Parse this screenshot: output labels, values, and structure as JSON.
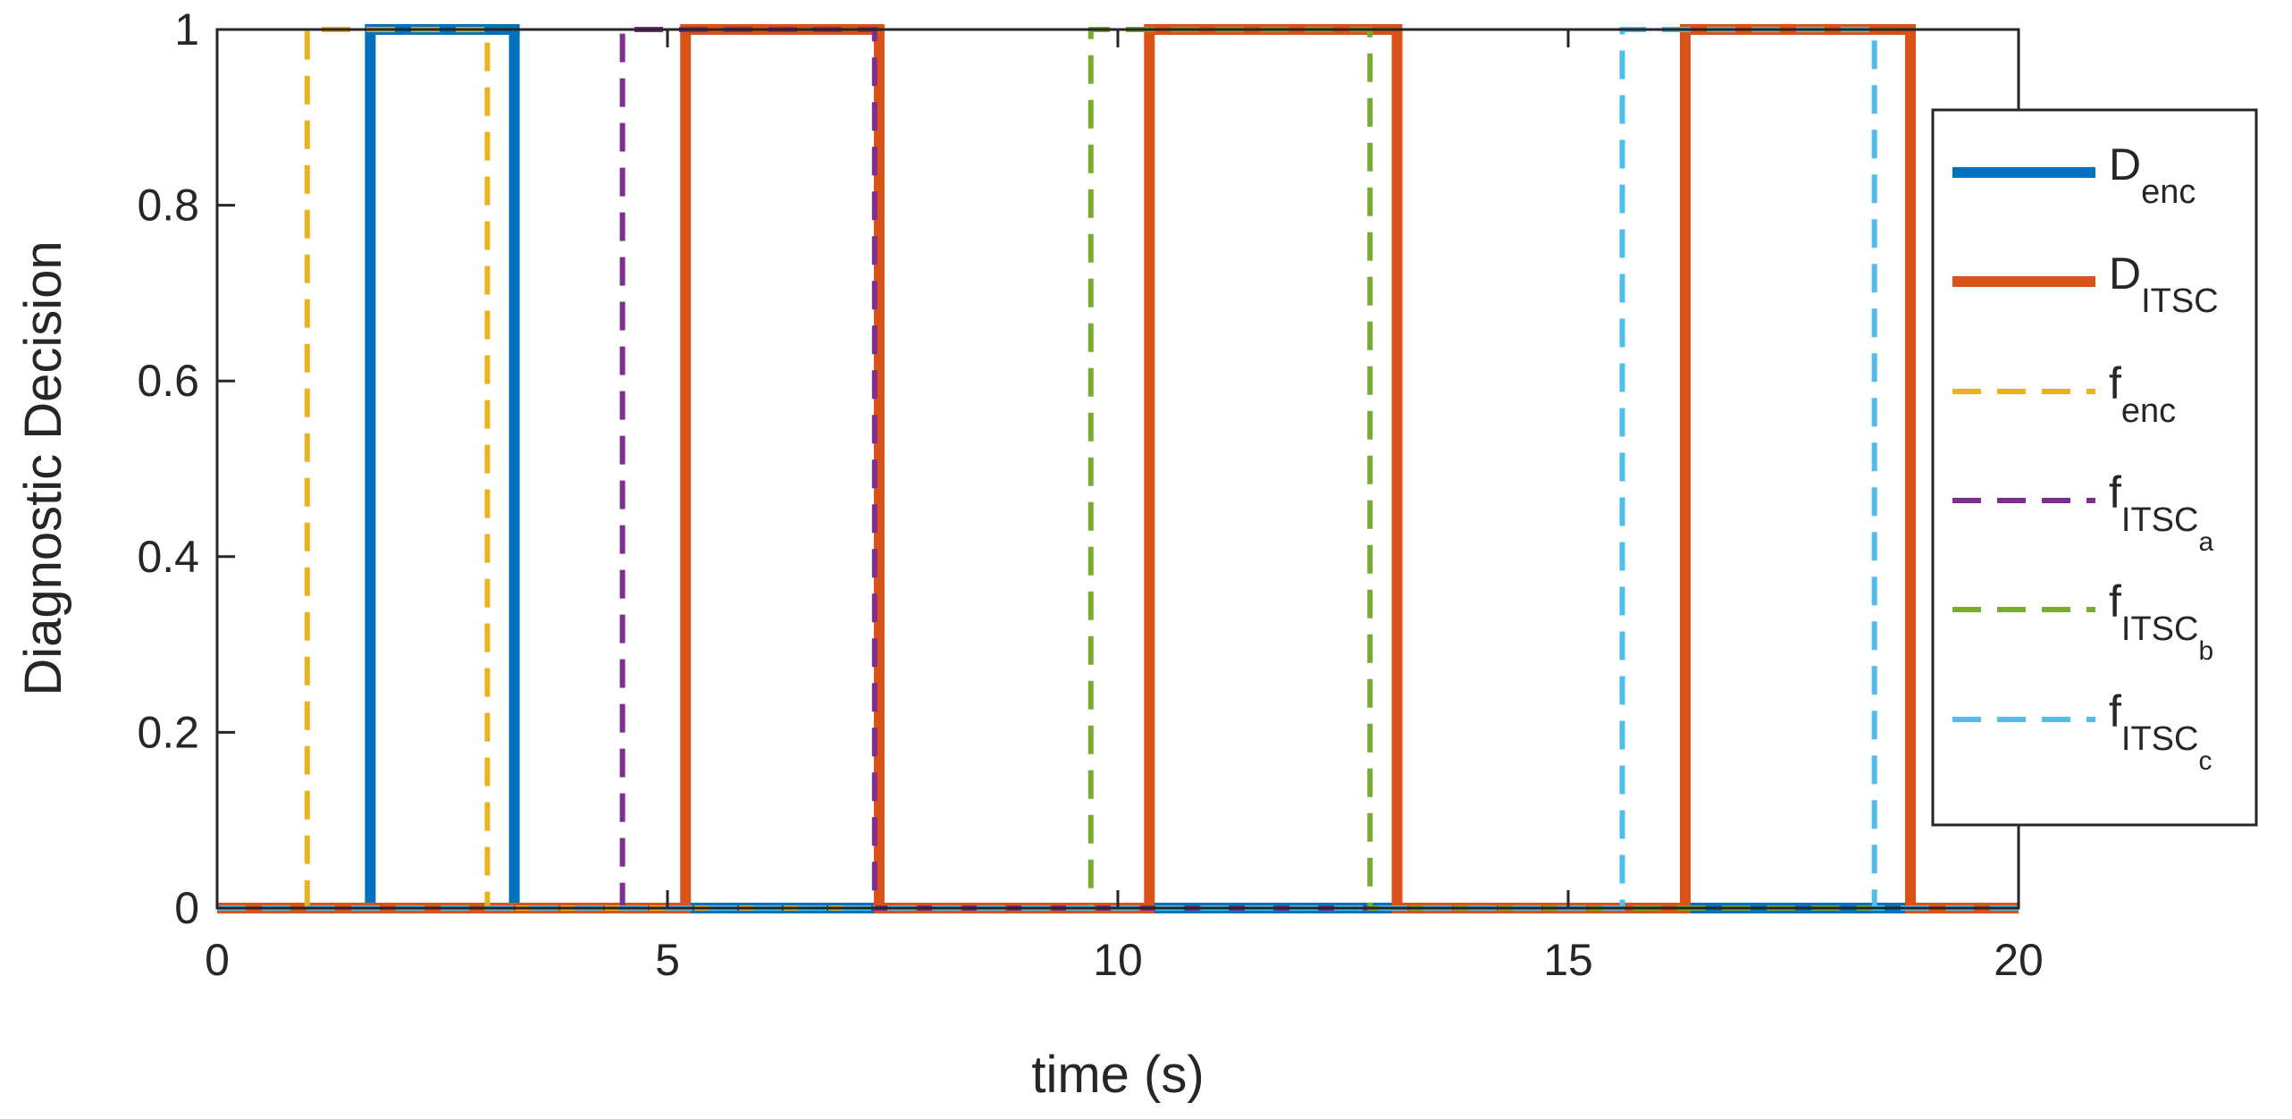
{
  "chart_data": {
    "type": "line",
    "xlabel": "time (s)",
    "ylabel": "Diagnostic Decision",
    "xlim": [
      0,
      20
    ],
    "ylim": [
      0,
      1
    ],
    "xticks": [
      0,
      5,
      10,
      15,
      20
    ],
    "xtick_labels": [
      "0",
      "5",
      "10",
      "15",
      "20"
    ],
    "yticks": [
      0,
      0.2,
      0.4,
      0.6,
      0.8,
      1
    ],
    "ytick_labels": [
      "0",
      "0.2",
      "0.4",
      "0.6",
      "0.8",
      "1"
    ],
    "grid": false,
    "legend_position": "right-inside",
    "series": [
      {
        "name": "D",
        "subscript": "enc",
        "subsubscript": "",
        "color": "#0072BD",
        "style": "solid",
        "x": [
          0,
          1.7,
          1.7,
          3.3,
          3.3,
          20
        ],
        "y": [
          0,
          0,
          1,
          1,
          0,
          0
        ]
      },
      {
        "name": "D",
        "subscript": "ITSC",
        "subsubscript": "",
        "color": "#D95319",
        "style": "solid",
        "x": [
          0,
          5.2,
          5.2,
          7.35,
          7.35,
          10.35,
          10.35,
          13.1,
          13.1,
          16.3,
          16.3,
          18.8,
          18.8,
          20
        ],
        "y": [
          0,
          0,
          1,
          1,
          0,
          0,
          1,
          1,
          0,
          0,
          1,
          1,
          0,
          0
        ]
      },
      {
        "name": "f",
        "subscript": "enc",
        "subsubscript": "",
        "color": "#EDB120",
        "style": "dashed",
        "x": [
          0,
          1.0,
          1.0,
          3.0,
          3.0,
          20
        ],
        "y": [
          0,
          0,
          1,
          1,
          0,
          0
        ]
      },
      {
        "name": "f",
        "subscript": "ITSC",
        "subsubscript": "a",
        "color": "#7E2F8E",
        "style": "dashed",
        "x": [
          0,
          4.5,
          4.5,
          7.3,
          7.3,
          20
        ],
        "y": [
          0,
          0,
          1,
          1,
          0,
          0
        ]
      },
      {
        "name": "f",
        "subscript": "ITSC",
        "subsubscript": "b",
        "color": "#77AC30",
        "style": "dashed",
        "x": [
          0,
          9.7,
          9.7,
          12.8,
          12.8,
          20
        ],
        "y": [
          0,
          0,
          1,
          1,
          0,
          0
        ]
      },
      {
        "name": "f",
        "subscript": "ITSC",
        "subsubscript": "c",
        "color": "#4DBEEE",
        "style": "dashed",
        "x": [
          0,
          15.6,
          15.6,
          18.4,
          18.4,
          20
        ],
        "y": [
          0,
          0,
          1,
          1,
          0,
          0
        ]
      }
    ]
  }
}
